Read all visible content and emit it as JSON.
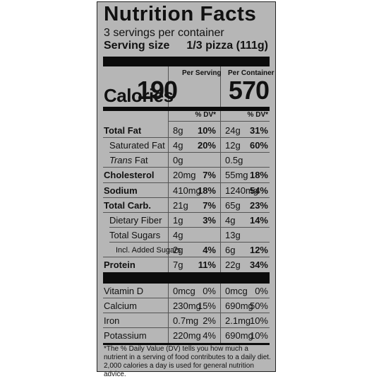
{
  "title": "Nutrition Facts",
  "servings": "3 servings per container",
  "serving_size_label": "Serving size",
  "serving_size_value": "1/3 pizza (111g)",
  "per_serving_label": "Per Serving",
  "per_container_label": "Per Container",
  "calories_label": "Calories",
  "calories_serving": "190",
  "calories_container": "570",
  "dv_label": "% DV*",
  "nutrients": [
    {
      "name": "Total Fat",
      "s_amt": "8g",
      "s_dv": "10%",
      "c_amt": "24g",
      "c_dv": "31%"
    },
    {
      "name": "Saturated Fat",
      "s_amt": "4g",
      "s_dv": "20%",
      "c_amt": "12g",
      "c_dv": "60%"
    },
    {
      "name_italic": "Trans",
      "name_rest": " Fat",
      "s_amt": "0g",
      "s_dv": "",
      "c_amt": "0.5g",
      "c_dv": ""
    },
    {
      "name": "Cholesterol",
      "s_amt": "20mg",
      "s_dv": "7%",
      "c_amt": "55mg",
      "c_dv": "18%"
    },
    {
      "name": "Sodium",
      "s_amt": "410mg",
      "s_dv": "18%",
      "c_amt": "1240mg",
      "c_dv": "54%"
    },
    {
      "name": "Total Carb.",
      "s_amt": "21g",
      "s_dv": "7%",
      "c_amt": "65g",
      "c_dv": "23%"
    },
    {
      "name": "Dietary Fiber",
      "s_amt": "1g",
      "s_dv": "3%",
      "c_amt": "4g",
      "c_dv": "14%"
    },
    {
      "name": "Total Sugars",
      "s_amt": "4g",
      "s_dv": "",
      "c_amt": "13g",
      "c_dv": ""
    },
    {
      "name": "Incl. Added Sugars",
      "s_amt": "2g",
      "s_dv": "4%",
      "c_amt": "6g",
      "c_dv": "12%"
    },
    {
      "name": "Protein",
      "s_amt": "7g",
      "s_dv": "11%",
      "c_amt": "22g",
      "c_dv": "34%"
    }
  ],
  "vitamins": [
    {
      "name": "Vitamin D",
      "s_amt": "0mcg",
      "s_dv": "0%",
      "c_amt": "0mcg",
      "c_dv": "0%"
    },
    {
      "name": "Calcium",
      "s_amt": "230mg",
      "s_dv": "15%",
      "c_amt": "690mg",
      "c_dv": "50%"
    },
    {
      "name": "Iron",
      "s_amt": "0.7mg",
      "s_dv": "2%",
      "c_amt": "2.1mg",
      "c_dv": "10%"
    },
    {
      "name": "Potassium",
      "s_amt": "220mg",
      "s_dv": "4%",
      "c_amt": "690mg",
      "c_dv": "10%"
    }
  ],
  "footnote": "*The % Daily Value (DV) tells you how much a nutrient in a serving of food contributes to a daily diet. 2,000 calories a day is used for general nutrition advice."
}
